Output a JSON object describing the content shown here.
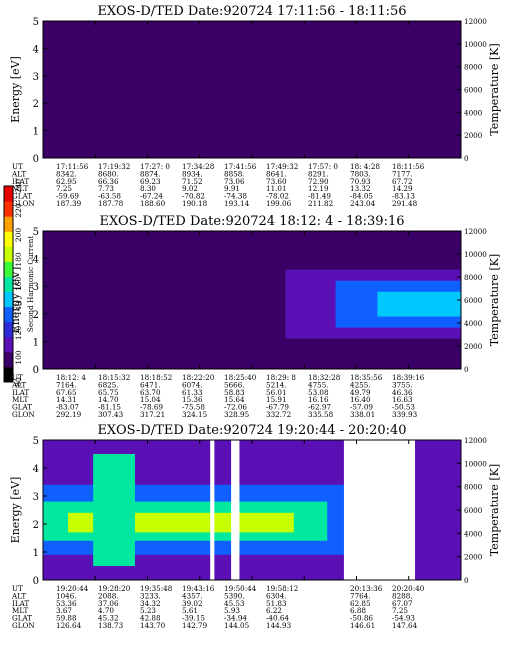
{
  "colorbar": {
    "label": "Second Harmonic Current",
    "ticks": [
      "80",
      "100",
      "120",
      "140",
      "160",
      "180",
      "200",
      "220",
      "240"
    ],
    "colors": [
      "#000000",
      "#3a0066",
      "#5a10b4",
      "#2b2bd8",
      "#1060ff",
      "#00c8ff",
      "#00e8a0",
      "#38ff38",
      "#c8ff00",
      "#ffff00",
      "#ffa000",
      "#ff3000",
      "#e80000"
    ]
  },
  "row_labels": [
    "UT",
    "ALT",
    "ILAT",
    "MLT",
    "GLAT",
    "GLON"
  ],
  "panels": [
    {
      "title": "EXOS-D/TED   Date:920724   17:11:56 - 18:11:56",
      "ylabel_left": "Energy [eV]",
      "ylabel_right": "Temperature [K]",
      "y_ticks": [
        "0",
        "1",
        "2",
        "3",
        "4",
        "5"
      ],
      "yr_ticks": [
        "0",
        "2000",
        "4000",
        "6000",
        "8000",
        "10000",
        "12000"
      ],
      "columns": [
        [
          "17:11:56",
          "8342.",
          "62.95",
          "7.25",
          "-59.69",
          "187.39"
        ],
        [
          "17:19:32",
          "8680.",
          "66.36",
          "7.73",
          "-63.58",
          "187.78"
        ],
        [
          "17:27: 0",
          "8874.",
          "69.23",
          "8.30",
          "-67.24",
          "188.60"
        ],
        [
          "17:34:28",
          "8934.",
          "71.52",
          "9.02",
          "-70.82",
          "190.18"
        ],
        [
          "17:41:56",
          "8858.",
          "73.06",
          "9.91",
          "-74.38",
          "193.14"
        ],
        [
          "17:49:32",
          "8641.",
          "73.60",
          "11.01",
          "-78.02",
          "199.06"
        ],
        [
          "17:57: 0",
          "8291.",
          "72.90",
          "12.19",
          "-81.49",
          "211.82"
        ],
        [
          "18: 4:28",
          "7803.",
          "70.93",
          "13.32",
          "-84.05",
          "243.04"
        ],
        [
          "18:11:56",
          "7177.",
          "67.72",
          "14.29",
          "-83.13",
          "291.48"
        ]
      ]
    },
    {
      "title": "EXOS-D/TED   Date:920724   18:12: 4 - 18:39:16",
      "ylabel_left": "Energy [eV]",
      "ylabel_right": "Temperature [K]",
      "y_ticks": [
        "0",
        "1",
        "2",
        "3",
        "4",
        "5"
      ],
      "yr_ticks": [
        "0",
        "2000",
        "4000",
        "6000",
        "8000",
        "10000",
        "12000"
      ],
      "columns": [
        [
          "18:12: 4",
          "7164.",
          "67.65",
          "14.31",
          "-83.07",
          "292.19"
        ],
        [
          "18:15:32",
          "6825.",
          "65.75",
          "14.70",
          "-81.15",
          "307.43"
        ],
        [
          "18:18:52",
          "6471.",
          "63.70",
          "15.04",
          "-78.69",
          "317.21"
        ],
        [
          "18:22:20",
          "6074.",
          "61.33",
          "15.36",
          "-75.58",
          "324.15"
        ],
        [
          "18:25:40",
          "5666.",
          "58.83",
          "15.64",
          "-72.06",
          "328.95"
        ],
        [
          "18:29: 8",
          "5214.",
          "56.01",
          "15.91",
          "-67.79",
          "332.72"
        ],
        [
          "18:32:28",
          "4755.",
          "53.08",
          "16.16",
          "-62.97",
          "335.58"
        ],
        [
          "18:35:56",
          "4255.",
          "49.79",
          "16.40",
          "-57.09",
          "338.01"
        ],
        [
          "18:39:16",
          "3755.",
          "46.36",
          "16.63",
          "-50.53",
          "339.93"
        ]
      ]
    },
    {
      "title": "EXOS-D/TED   Date:920724   19:20:44 - 20:20:40",
      "ylabel_left": "Energy [eV]",
      "ylabel_right": "Temperature [K]",
      "y_ticks": [
        "0",
        "1",
        "2",
        "3",
        "4",
        "5"
      ],
      "yr_ticks": [
        "0",
        "2000",
        "4000",
        "6000",
        "8000",
        "10000",
        "12000"
      ],
      "columns": [
        [
          "19:20:44",
          "1046.",
          "53.36",
          "3.67",
          "59.88",
          "126.64"
        ],
        [
          "19:28:20",
          "2088.",
          "37.06",
          "4.70",
          "45.32",
          "138.73"
        ],
        [
          "19:35:48",
          "3233.",
          "34.32",
          "5.23",
          "42.88",
          "143.70"
        ],
        [
          "19:43:16",
          "4357.",
          "39.02",
          "5.61",
          "-39.15",
          "142.79"
        ],
        [
          "19:50:44",
          "5390.",
          "45.53",
          "5.93",
          "-34.94",
          "144.05"
        ],
        [
          "19:58:12",
          "6304.",
          "51.83",
          "6.22",
          "-40.64",
          "144.93"
        ],
        [
          "",
          "",
          "",
          "",
          "",
          ""
        ],
        [
          "20:13:36",
          "7764.",
          "62.85",
          "6.88",
          "-50.86",
          "146.61"
        ],
        [
          "20:20:40",
          "8288.",
          "67.07",
          "7.25",
          "-54.93",
          "147.64"
        ]
      ]
    }
  ],
  "chart_data": [
    {
      "type": "heatmap",
      "title": "EXOS-D/TED   Date:920724   17:11:56 - 18:11:56",
      "xlabel": "UT",
      "ylabel": "Energy [eV]",
      "ylabel_right": "Temperature [K]",
      "ylim": [
        0,
        5
      ],
      "ylim_right": [
        0,
        12000
      ],
      "x_ticks": [
        "17:11:56",
        "17:19:32",
        "17:27: 0",
        "17:34:28",
        "17:41:56",
        "17:49:32",
        "17:57: 0",
        "18: 4:28",
        "18:11:56"
      ],
      "colorbar": {
        "label": "Second Harmonic Current",
        "range": [
          80,
          240
        ]
      },
      "bands": [
        {
          "x_from": 0.0,
          "x_to": 1.0,
          "e_from": 0.0,
          "e_to": 5.0,
          "level": 100
        }
      ],
      "gaps": []
    },
    {
      "type": "heatmap",
      "title": "EXOS-D/TED   Date:920724   18:12: 4 - 18:39:16",
      "xlabel": "UT",
      "ylabel": "Energy [eV]",
      "ylabel_right": "Temperature [K]",
      "ylim": [
        0,
        5
      ],
      "ylim_right": [
        0,
        12000
      ],
      "x_ticks": [
        "18:12: 4",
        "18:15:32",
        "18:18:52",
        "18:22:20",
        "18:25:40",
        "18:29: 8",
        "18:32:28",
        "18:35:56",
        "18:39:16"
      ],
      "colorbar": {
        "label": "Second Harmonic Current",
        "range": [
          80,
          240
        ]
      },
      "bands": [
        {
          "x_from": 0.0,
          "x_to": 1.0,
          "e_from": 0.0,
          "e_to": 5.0,
          "level": 100
        },
        {
          "x_from": 0.58,
          "x_to": 1.0,
          "e_from": 1.1,
          "e_to": 3.6,
          "level": 115
        },
        {
          "x_from": 0.7,
          "x_to": 1.0,
          "e_from": 1.5,
          "e_to": 3.2,
          "level": 130
        },
        {
          "x_from": 0.8,
          "x_to": 1.0,
          "e_from": 1.9,
          "e_to": 2.8,
          "level": 145
        }
      ],
      "gaps": []
    },
    {
      "type": "heatmap",
      "title": "EXOS-D/TED   Date:920724   19:20:44 - 20:20:40",
      "xlabel": "UT",
      "ylabel": "Energy [eV]",
      "ylabel_right": "Temperature [K]",
      "ylim": [
        0,
        5
      ],
      "ylim_right": [
        0,
        12000
      ],
      "x_ticks": [
        "19:20:44",
        "19:28:20",
        "19:35:48",
        "19:43:16",
        "19:50:44",
        "19:58:12",
        "",
        "20:13:36",
        "20:20:40"
      ],
      "colorbar": {
        "label": "Second Harmonic Current",
        "range": [
          80,
          240
        ]
      },
      "bands": [
        {
          "x_from": 0.0,
          "x_to": 0.72,
          "e_from": 0.0,
          "e_to": 5.0,
          "level": 115
        },
        {
          "x_from": 0.0,
          "x_to": 0.72,
          "e_from": 0.9,
          "e_to": 3.4,
          "level": 140
        },
        {
          "x_from": 0.0,
          "x_to": 0.68,
          "e_from": 1.4,
          "e_to": 2.8,
          "level": 165
        },
        {
          "x_from": 0.06,
          "x_to": 0.6,
          "e_from": 1.7,
          "e_to": 2.4,
          "level": 185
        },
        {
          "x_from": 0.12,
          "x_to": 0.22,
          "e_from": 0.5,
          "e_to": 4.5,
          "level": 160
        },
        {
          "x_from": 0.89,
          "x_to": 1.0,
          "e_from": 0.0,
          "e_to": 5.0,
          "level": 115
        }
      ],
      "gaps": [
        {
          "x_from": 0.4,
          "x_to": 0.41
        },
        {
          "x_from": 0.45,
          "x_to": 0.47
        },
        {
          "x_from": 0.72,
          "x_to": 0.89
        }
      ]
    }
  ]
}
